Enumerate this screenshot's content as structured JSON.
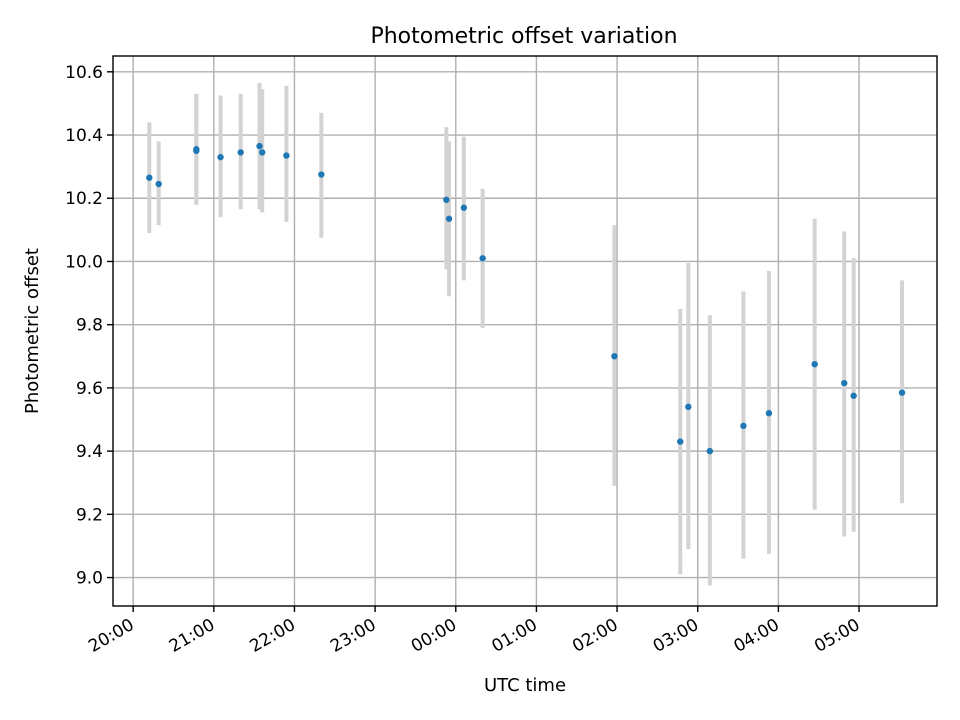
{
  "chart_data": {
    "type": "scatter",
    "title": "Photometric offset variation",
    "xlabel": "UTC time",
    "ylabel": "Photometric offset",
    "xlim": [
      "19:45",
      "05:58"
    ],
    "ylim": [
      8.91,
      10.65
    ],
    "x_ticks": [
      "20:00",
      "21:00",
      "22:00",
      "23:00",
      "00:00",
      "01:00",
      "02:00",
      "03:00",
      "04:00",
      "05:00"
    ],
    "y_ticks": [
      "9.0",
      "9.2",
      "9.4",
      "9.6",
      "9.8",
      "10.0",
      "10.2",
      "10.4",
      "10.6"
    ],
    "grid": true,
    "marker_color": "#1f77b4",
    "errorbar_color": "#d3d3d3",
    "points": [
      {
        "time": "20:12",
        "value": 10.265,
        "low": 10.09,
        "high": 10.44
      },
      {
        "time": "20:19",
        "value": 10.245,
        "low": 10.115,
        "high": 10.38
      },
      {
        "time": "20:47",
        "value": 10.355,
        "low": 10.18,
        "high": 10.53
      },
      {
        "time": "20:47",
        "value": 10.35,
        "low": 10.18,
        "high": 10.53
      },
      {
        "time": "21:05",
        "value": 10.33,
        "low": 10.14,
        "high": 10.525
      },
      {
        "time": "21:20",
        "value": 10.345,
        "low": 10.165,
        "high": 10.53
      },
      {
        "time": "21:34",
        "value": 10.365,
        "low": 10.165,
        "high": 10.565
      },
      {
        "time": "21:36",
        "value": 10.345,
        "low": 10.155,
        "high": 10.545
      },
      {
        "time": "21:54",
        "value": 10.335,
        "low": 10.125,
        "high": 10.555
      },
      {
        "time": "22:20",
        "value": 10.275,
        "low": 10.075,
        "high": 10.47
      },
      {
        "time": "23:53",
        "value": 10.195,
        "low": 9.975,
        "high": 10.425
      },
      {
        "time": "23:55",
        "value": 10.135,
        "low": 9.89,
        "high": 10.38
      },
      {
        "time": "00:06",
        "value": 10.17,
        "low": 9.94,
        "high": 10.395
      },
      {
        "time": "00:20",
        "value": 10.01,
        "low": 9.79,
        "high": 10.23
      },
      {
        "time": "01:58",
        "value": 9.7,
        "low": 9.29,
        "high": 10.115
      },
      {
        "time": "02:47",
        "value": 9.43,
        "low": 9.01,
        "high": 9.85
      },
      {
        "time": "02:53",
        "value": 9.54,
        "low": 9.09,
        "high": 9.995
      },
      {
        "time": "03:09",
        "value": 9.4,
        "low": 8.975,
        "high": 9.83
      },
      {
        "time": "03:34",
        "value": 9.48,
        "low": 9.06,
        "high": 9.905
      },
      {
        "time": "03:53",
        "value": 9.52,
        "low": 9.075,
        "high": 9.97
      },
      {
        "time": "04:27",
        "value": 9.675,
        "low": 9.215,
        "high": 10.135
      },
      {
        "time": "04:49",
        "value": 9.615,
        "low": 9.13,
        "high": 10.095
      },
      {
        "time": "04:56",
        "value": 9.575,
        "low": 9.145,
        "high": 10.01
      },
      {
        "time": "05:32",
        "value": 9.585,
        "low": 9.235,
        "high": 9.94
      }
    ]
  }
}
